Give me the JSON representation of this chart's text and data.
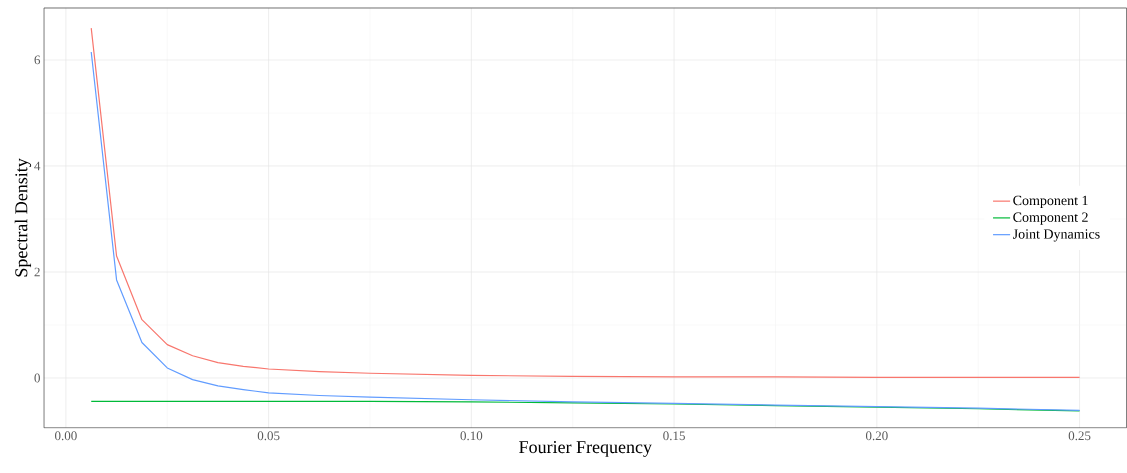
{
  "chart_data": {
    "type": "line",
    "xlabel": "Fourier Frequency",
    "ylabel": "Spectral Density",
    "x": [
      0.00625,
      0.0125,
      0.01875,
      0.025,
      0.03125,
      0.0375,
      0.04375,
      0.05,
      0.0625,
      0.075,
      0.1,
      0.125,
      0.15,
      0.175,
      0.2,
      0.225,
      0.25
    ],
    "series": [
      {
        "name": "Component 1",
        "color": "#f8766d",
        "values": [
          6.6,
          2.3,
          1.1,
          0.63,
          0.42,
          0.29,
          0.22,
          0.17,
          0.12,
          0.09,
          0.05,
          0.03,
          0.02,
          0.02,
          0.01,
          0.01,
          0.01
        ]
      },
      {
        "name": "Component 2",
        "color": "#00ba38",
        "values": [
          -0.44,
          -0.44,
          -0.44,
          -0.44,
          -0.44,
          -0.44,
          -0.44,
          -0.44,
          -0.44,
          -0.44,
          -0.45,
          -0.47,
          -0.49,
          -0.52,
          -0.55,
          -0.58,
          -0.62
        ]
      },
      {
        "name": "Joint Dynamics",
        "color": "#619cff",
        "values": [
          6.15,
          1.85,
          0.67,
          0.19,
          -0.03,
          -0.15,
          -0.22,
          -0.28,
          -0.33,
          -0.36,
          -0.41,
          -0.45,
          -0.48,
          -0.51,
          -0.54,
          -0.57,
          -0.61
        ]
      }
    ],
    "xlim": [
      -0.0054,
      0.2616
    ],
    "ylim": [
      -0.94,
      6.98
    ],
    "xticks": [
      {
        "value": 0,
        "label": "0.00"
      },
      0.05,
      {
        "value": 0.1,
        "label": "0.10"
      },
      0.15,
      {
        "value": 0.2,
        "label": "0.20"
      },
      0.25
    ],
    "yticks": [
      0,
      2,
      4,
      6
    ],
    "grid": true,
    "legend": "right",
    "line_style": "solid",
    "marker": "none"
  }
}
